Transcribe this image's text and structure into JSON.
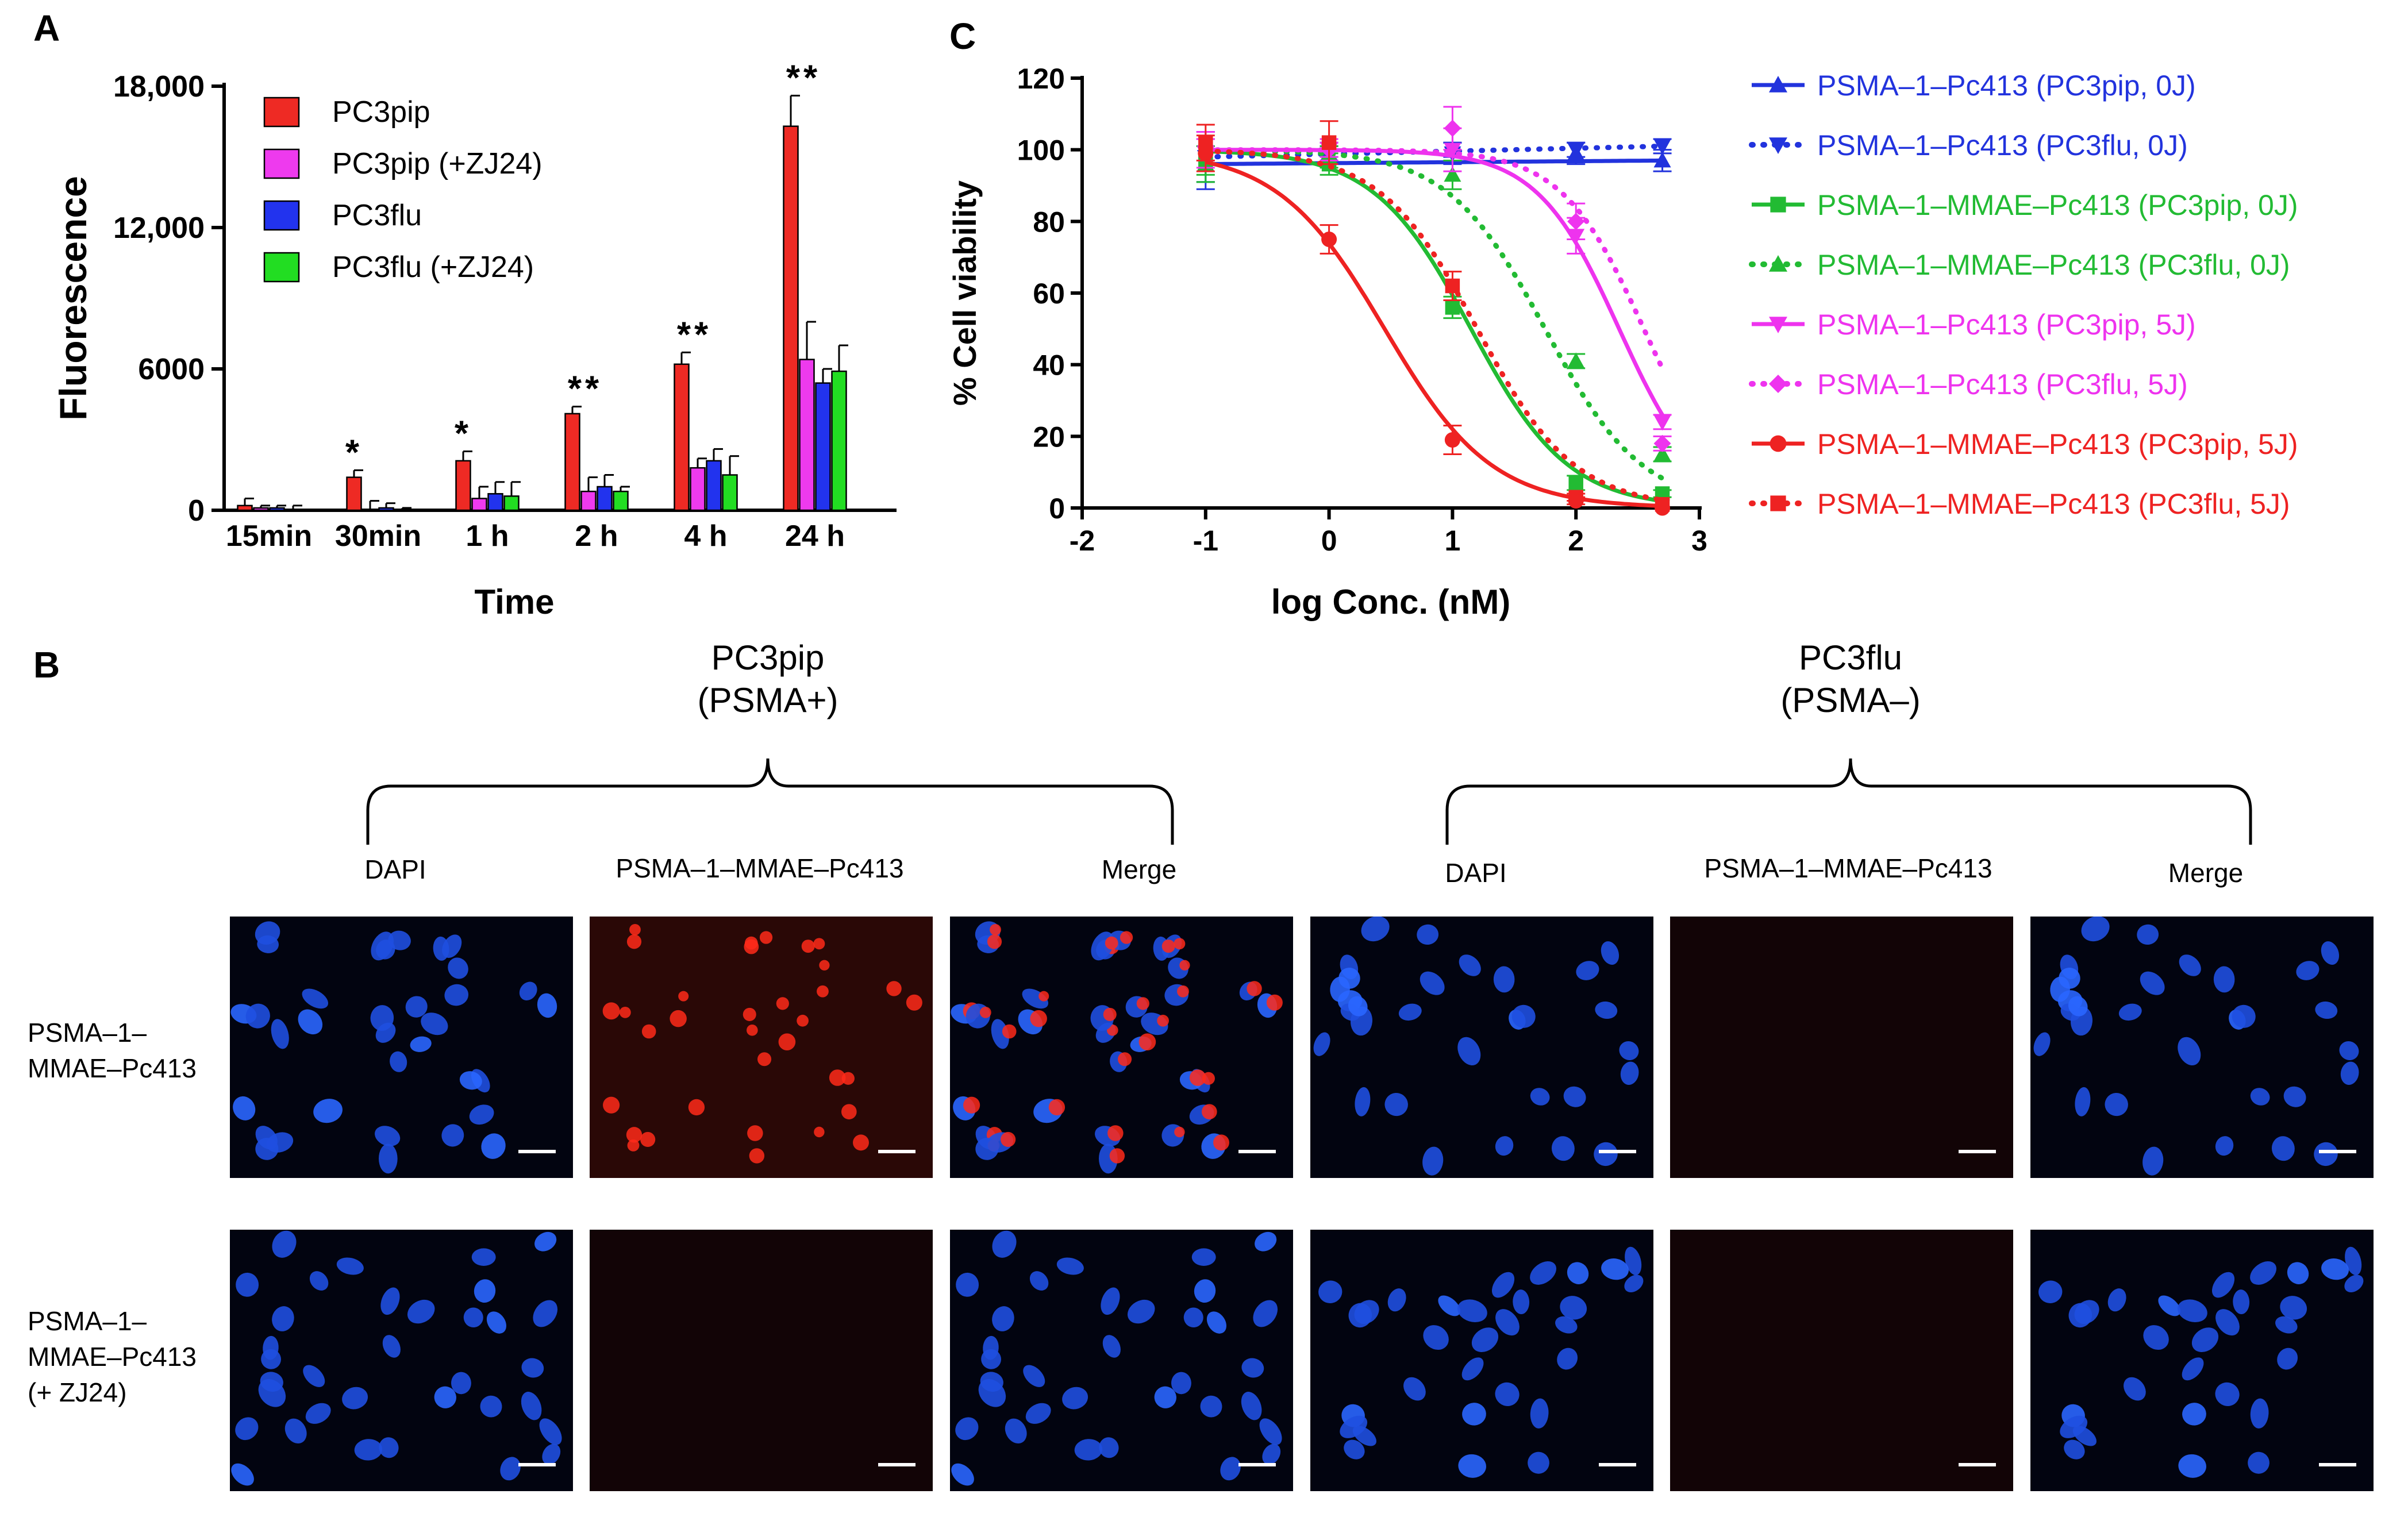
{
  "panels": {
    "a": "A",
    "b": "B",
    "c": "C"
  },
  "chart_data": [
    {
      "type": "bar",
      "panel": "A",
      "categories": [
        "15min",
        "30min",
        "1 h",
        "2 h",
        "4 h",
        "24 h"
      ],
      "series": [
        {
          "name": "PC3pip",
          "color": "#ee2a24",
          "values": [
            200,
            1400,
            2100,
            4100,
            6200,
            16300
          ],
          "errors": [
            300,
            300,
            400,
            300,
            500,
            1300
          ]
        },
        {
          "name": "PC3pip (+ZJ24)",
          "color": "#ee3aee",
          "values": [
            100,
            0,
            500,
            800,
            1800,
            6400
          ],
          "errors": [
            100,
            400,
            500,
            600,
            400,
            1600
          ]
        },
        {
          "name": "PC3flu",
          "color": "#2233ee",
          "values": [
            100,
            100,
            700,
            1000,
            2100,
            5400
          ],
          "errors": [
            100,
            200,
            500,
            500,
            500,
            600
          ]
        },
        {
          "name": "PC3flu (+ZJ24)",
          "color": "#22dd22",
          "values": [
            0,
            0,
            600,
            800,
            1500,
            5900
          ],
          "errors": [
            200,
            100,
            600,
            200,
            800,
            1100
          ]
        }
      ],
      "significance": [
        "",
        "*",
        "*",
        "**",
        "**",
        "**"
      ],
      "xlabel": "Time",
      "ylabel": "Fluorescence",
      "ylim": [
        0,
        18000
      ],
      "yticks": [
        "0",
        "6000",
        "12,000",
        "18,000"
      ],
      "ytick_values": [
        0,
        6000,
        12000,
        18000
      ],
      "legend": "top-left"
    },
    {
      "type": "scatter",
      "panel": "C",
      "xlabel": "log Conc. (nM)",
      "ylabel": "% Cell viability",
      "xlim": [
        -2,
        3
      ],
      "ylim": [
        0,
        120
      ],
      "xticks": [
        "-2",
        "-1",
        "0",
        "1",
        "2",
        "3"
      ],
      "xtick_values": [
        -2,
        -1,
        0,
        1,
        2,
        3
      ],
      "yticks": [
        "0",
        "20",
        "40",
        "60",
        "80",
        "100",
        "120"
      ],
      "ytick_values": [
        0,
        20,
        40,
        60,
        80,
        100,
        120
      ],
      "x": [
        -1,
        0,
        1,
        2,
        2.7
      ],
      "legend": "right",
      "series": [
        {
          "name": "PSMA–1–Pc413 (PC3pip, 0J)",
          "color": "#2233dd",
          "dash": false,
          "marker": "triangle-up",
          "y": [
            96,
            99,
            100,
            99,
            97
          ],
          "errors": [
            7,
            2,
            2,
            3,
            3
          ],
          "fit_ic50": null,
          "fit_slope": 1
        },
        {
          "name": "PSMA–1–Pc413 (PC3flu, 0J)",
          "color": "#2233dd",
          "dash": true,
          "marker": "triangle-down",
          "y": [
            98,
            100,
            99,
            100,
            101
          ],
          "errors": [
            7,
            2,
            3,
            2,
            2
          ],
          "fit_ic50": null,
          "fit_slope": 1
        },
        {
          "name": "PSMA–1–MMAE–Pc413 (PC3pip, 0J)",
          "color": "#22bb33",
          "dash": false,
          "marker": "square",
          "y": [
            97,
            96,
            56,
            7,
            4
          ],
          "errors": [
            4,
            3,
            3,
            2,
            1
          ],
          "fit_ic50": 1.15,
          "fit_slope": 1.1
        },
        {
          "name": "PSMA–1–MMAE–Pc413 (PC3flu, 0J)",
          "color": "#22bb33",
          "dash": true,
          "marker": "triangle-up",
          "y": [
            96,
            98,
            93,
            41,
            15
          ],
          "errors": [
            5,
            3,
            4,
            2,
            2
          ],
          "fit_ic50": 1.75,
          "fit_slope": 1.1
        },
        {
          "name": "PSMA–1–Pc413 (PC3pip, 5J)",
          "color": "#ee33ee",
          "dash": false,
          "marker": "triangle-down",
          "y": [
            99,
            100,
            100,
            76,
            24
          ],
          "errors": [
            4,
            2,
            6,
            5,
            2
          ],
          "fit_ic50": 2.35,
          "fit_slope": 1.3
        },
        {
          "name": "PSMA–1–Pc413 (PC3flu, 5J)",
          "color": "#ee33ee",
          "dash": true,
          "marker": "diamond",
          "y": [
            101,
            100,
            106,
            80,
            18
          ],
          "errors": [
            4,
            3,
            6,
            5,
            2
          ],
          "fit_ic50": 2.55,
          "fit_slope": 1.3
        },
        {
          "name": "PSMA–1–MMAE–Pc413 (PC3pip, 5J)",
          "color": "#ee2222",
          "dash": false,
          "marker": "circle",
          "y": [
            99,
            75,
            19,
            2,
            0
          ],
          "errors": [
            5,
            4,
            4,
            1,
            0
          ],
          "fit_ic50": 0.45,
          "fit_slope": 1.0
        },
        {
          "name": "PSMA–1–MMAE–Pc413 (PC3flu, 5J)",
          "color": "#ee2222",
          "dash": true,
          "marker": "square",
          "y": [
            102,
            102,
            62,
            3,
            1
          ],
          "errors": [
            5,
            6,
            4,
            1,
            0
          ],
          "fit_ic50": 1.2,
          "fit_slope": 1.1
        }
      ]
    }
  ],
  "microscopy": {
    "groups": [
      {
        "title_line1": "PC3pip",
        "title_line2": "(PSMA+)"
      },
      {
        "title_line1": "PC3flu",
        "title_line2": "(PSMA–)"
      }
    ],
    "columns": [
      "DAPI",
      "PSMA–1–MMAE–Pc413",
      "Merge",
      "DAPI",
      "PSMA–1–MMAE–Pc413",
      "Merge"
    ],
    "rows": [
      {
        "label_lines": [
          "PSMA–1–",
          "MMAE–Pc413"
        ]
      },
      {
        "label_lines": [
          "PSMA–1–",
          "MMAE–Pc413",
          "(+ ZJ24)"
        ]
      }
    ],
    "colors": {
      "nucleus": "#1f4fe0",
      "nucleus_bright": "#2a66ff",
      "red_signal": "#ff2a1a",
      "background": "#020410"
    }
  }
}
